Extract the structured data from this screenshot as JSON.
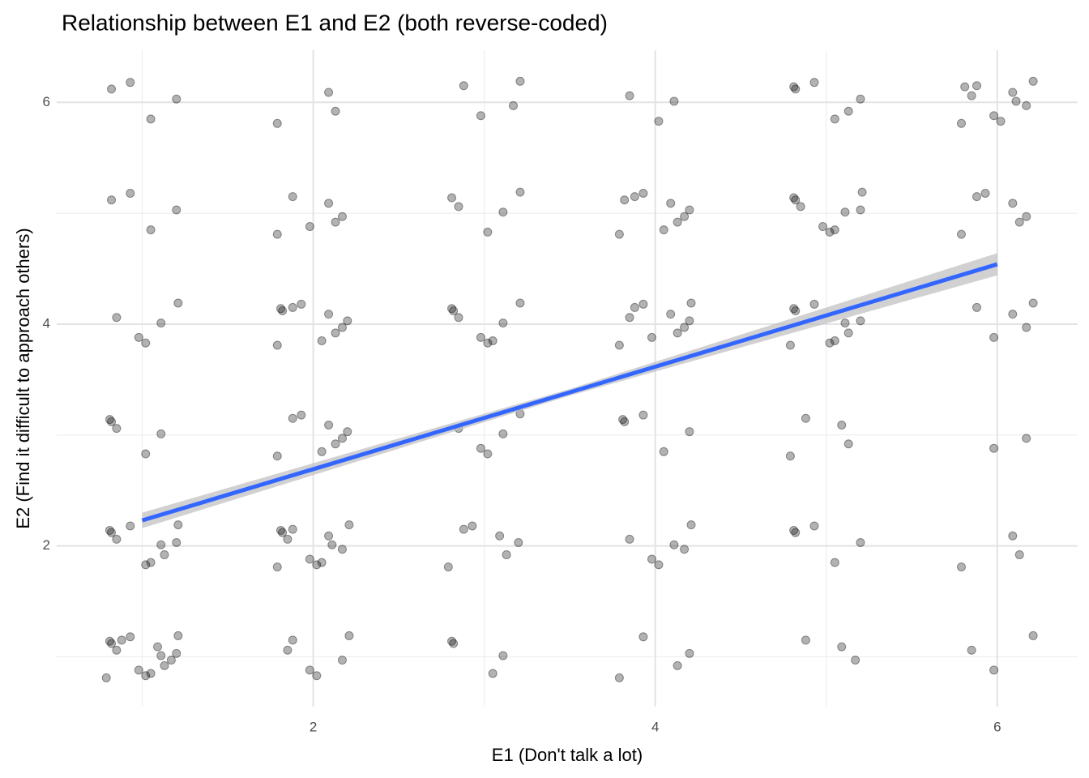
{
  "chart_data": {
    "type": "scatter",
    "title": "Relationship between E1 and E2 (both reverse-coded)",
    "x_label": "E1 (Don't talk a lot)",
    "y_label": "E2 (Find it difficult to approach others)",
    "xlim": [
      0.5,
      6.47
    ],
    "ylim": [
      0.55,
      6.47
    ],
    "xticks": [
      2,
      4,
      6
    ],
    "yticks": [
      2,
      4,
      6
    ],
    "x_minor_grid": [
      1,
      3,
      5
    ],
    "y_minor_grid": [
      1,
      3,
      5
    ],
    "grid": true,
    "point_color": "#000000",
    "point_opacity": 0.3,
    "points": [
      [
        0.82,
        6.12
      ],
      [
        1.05,
        5.85
      ],
      [
        1.2,
        6.03
      ],
      [
        0.93,
        6.18
      ],
      [
        2.13,
        5.92
      ],
      [
        1.79,
        5.81
      ],
      [
        2.09,
        6.09
      ],
      [
        2.88,
        6.15
      ],
      [
        3.17,
        5.97
      ],
      [
        2.98,
        5.88
      ],
      [
        3.21,
        6.19
      ],
      [
        3.85,
        6.06
      ],
      [
        4.02,
        5.83
      ],
      [
        4.11,
        6.01
      ],
      [
        4.81,
        6.14
      ],
      [
        4.82,
        6.12
      ],
      [
        5.05,
        5.85
      ],
      [
        5.2,
        6.03
      ],
      [
        4.93,
        6.18
      ],
      [
        5.13,
        5.92
      ],
      [
        5.79,
        5.81
      ],
      [
        6.09,
        6.09
      ],
      [
        5.88,
        6.15
      ],
      [
        6.17,
        5.97
      ],
      [
        5.98,
        5.88
      ],
      [
        6.21,
        6.19
      ],
      [
        5.85,
        6.06
      ],
      [
        6.02,
        5.83
      ],
      [
        6.11,
        6.01
      ],
      [
        5.81,
        6.14
      ],
      [
        0.82,
        5.12
      ],
      [
        1.05,
        4.85
      ],
      [
        1.2,
        5.03
      ],
      [
        0.93,
        5.18
      ],
      [
        2.13,
        4.92
      ],
      [
        1.79,
        4.81
      ],
      [
        2.09,
        5.09
      ],
      [
        1.88,
        5.15
      ],
      [
        2.17,
        4.97
      ],
      [
        1.98,
        4.88
      ],
      [
        3.21,
        5.19
      ],
      [
        2.85,
        5.06
      ],
      [
        3.02,
        4.83
      ],
      [
        3.11,
        5.01
      ],
      [
        2.81,
        5.14
      ],
      [
        3.82,
        5.12
      ],
      [
        4.05,
        4.85
      ],
      [
        4.2,
        5.03
      ],
      [
        3.93,
        5.18
      ],
      [
        4.13,
        4.92
      ],
      [
        3.79,
        4.81
      ],
      [
        4.09,
        5.09
      ],
      [
        3.88,
        5.15
      ],
      [
        4.17,
        4.97
      ],
      [
        4.98,
        4.88
      ],
      [
        5.21,
        5.19
      ],
      [
        4.85,
        5.06
      ],
      [
        5.02,
        4.83
      ],
      [
        5.11,
        5.01
      ],
      [
        4.81,
        5.14
      ],
      [
        4.82,
        5.12
      ],
      [
        5.05,
        4.85
      ],
      [
        5.2,
        5.03
      ],
      [
        5.93,
        5.18
      ],
      [
        6.13,
        4.92
      ],
      [
        5.79,
        4.81
      ],
      [
        6.09,
        5.09
      ],
      [
        5.88,
        5.15
      ],
      [
        6.17,
        4.97
      ],
      [
        0.98,
        3.88
      ],
      [
        1.21,
        4.19
      ],
      [
        0.85,
        4.06
      ],
      [
        1.02,
        3.83
      ],
      [
        1.11,
        4.01
      ],
      [
        1.81,
        4.14
      ],
      [
        1.82,
        4.12
      ],
      [
        2.05,
        3.85
      ],
      [
        2.2,
        4.03
      ],
      [
        1.93,
        4.18
      ],
      [
        2.13,
        3.92
      ],
      [
        1.79,
        3.81
      ],
      [
        2.09,
        4.09
      ],
      [
        1.88,
        4.15
      ],
      [
        2.17,
        3.97
      ],
      [
        2.98,
        3.88
      ],
      [
        3.21,
        4.19
      ],
      [
        2.85,
        4.06
      ],
      [
        3.02,
        3.83
      ],
      [
        3.11,
        4.01
      ],
      [
        2.81,
        4.14
      ],
      [
        2.82,
        4.12
      ],
      [
        3.05,
        3.85
      ],
      [
        4.2,
        4.03
      ],
      [
        3.93,
        4.18
      ],
      [
        4.13,
        3.92
      ],
      [
        3.79,
        3.81
      ],
      [
        4.09,
        4.09
      ],
      [
        3.88,
        4.15
      ],
      [
        4.17,
        3.97
      ],
      [
        3.98,
        3.88
      ],
      [
        4.21,
        4.19
      ],
      [
        3.85,
        4.06
      ],
      [
        5.02,
        3.83
      ],
      [
        5.11,
        4.01
      ],
      [
        4.81,
        4.14
      ],
      [
        4.82,
        4.12
      ],
      [
        5.05,
        3.85
      ],
      [
        5.2,
        4.03
      ],
      [
        4.93,
        4.18
      ],
      [
        5.13,
        3.92
      ],
      [
        4.79,
        3.81
      ],
      [
        6.09,
        4.09
      ],
      [
        5.88,
        4.15
      ],
      [
        6.17,
        3.97
      ],
      [
        5.98,
        3.88
      ],
      [
        6.21,
        4.19
      ],
      [
        0.85,
        3.06
      ],
      [
        1.02,
        2.83
      ],
      [
        1.11,
        3.01
      ],
      [
        0.81,
        3.14
      ],
      [
        0.82,
        3.12
      ],
      [
        2.05,
        2.85
      ],
      [
        2.2,
        3.03
      ],
      [
        1.93,
        3.18
      ],
      [
        2.13,
        2.92
      ],
      [
        1.79,
        2.81
      ],
      [
        2.09,
        3.09
      ],
      [
        1.88,
        3.15
      ],
      [
        2.17,
        2.97
      ],
      [
        2.98,
        2.88
      ],
      [
        3.21,
        3.19
      ],
      [
        2.85,
        3.06
      ],
      [
        3.02,
        2.83
      ],
      [
        3.11,
        3.01
      ],
      [
        3.81,
        3.14
      ],
      [
        3.82,
        3.12
      ],
      [
        4.05,
        2.85
      ],
      [
        4.2,
        3.03
      ],
      [
        3.93,
        3.18
      ],
      [
        5.13,
        2.92
      ],
      [
        4.79,
        2.81
      ],
      [
        5.09,
        3.09
      ],
      [
        4.88,
        3.15
      ],
      [
        6.17,
        2.97
      ],
      [
        5.98,
        2.88
      ],
      [
        1.21,
        2.19
      ],
      [
        0.85,
        2.06
      ],
      [
        1.02,
        1.83
      ],
      [
        1.11,
        2.01
      ],
      [
        0.81,
        2.14
      ],
      [
        0.82,
        2.12
      ],
      [
        1.05,
        1.85
      ],
      [
        1.2,
        2.03
      ],
      [
        0.93,
        2.18
      ],
      [
        1.13,
        1.92
      ],
      [
        1.79,
        1.81
      ],
      [
        2.09,
        2.09
      ],
      [
        1.88,
        2.15
      ],
      [
        2.17,
        1.97
      ],
      [
        1.98,
        1.88
      ],
      [
        2.21,
        2.19
      ],
      [
        1.85,
        2.06
      ],
      [
        2.02,
        1.83
      ],
      [
        2.11,
        2.01
      ],
      [
        1.81,
        2.14
      ],
      [
        1.82,
        2.12
      ],
      [
        2.05,
        1.85
      ],
      [
        3.2,
        2.03
      ],
      [
        2.93,
        2.18
      ],
      [
        3.13,
        1.92
      ],
      [
        2.79,
        1.81
      ],
      [
        3.09,
        2.09
      ],
      [
        2.88,
        2.15
      ],
      [
        4.17,
        1.97
      ],
      [
        3.98,
        1.88
      ],
      [
        4.21,
        2.19
      ],
      [
        3.85,
        2.06
      ],
      [
        4.02,
        1.83
      ],
      [
        4.11,
        2.01
      ],
      [
        4.81,
        2.14
      ],
      [
        4.82,
        2.12
      ],
      [
        5.05,
        1.85
      ],
      [
        5.2,
        2.03
      ],
      [
        4.93,
        2.18
      ],
      [
        6.13,
        1.92
      ],
      [
        5.79,
        1.81
      ],
      [
        6.09,
        2.09
      ],
      [
        0.88,
        1.15
      ],
      [
        1.17,
        0.97
      ],
      [
        0.98,
        0.88
      ],
      [
        1.21,
        1.19
      ],
      [
        0.85,
        1.06
      ],
      [
        1.02,
        0.83
      ],
      [
        1.11,
        1.01
      ],
      [
        0.81,
        1.14
      ],
      [
        0.82,
        1.12
      ],
      [
        1.05,
        0.85
      ],
      [
        1.2,
        1.03
      ],
      [
        0.93,
        1.18
      ],
      [
        1.13,
        0.92
      ],
      [
        0.79,
        0.81
      ],
      [
        1.09,
        1.09
      ],
      [
        1.88,
        1.15
      ],
      [
        2.17,
        0.97
      ],
      [
        1.98,
        0.88
      ],
      [
        2.21,
        1.19
      ],
      [
        1.85,
        1.06
      ],
      [
        2.02,
        0.83
      ],
      [
        3.11,
        1.01
      ],
      [
        2.81,
        1.14
      ],
      [
        2.82,
        1.12
      ],
      [
        3.05,
        0.85
      ],
      [
        4.2,
        1.03
      ],
      [
        3.93,
        1.18
      ],
      [
        4.13,
        0.92
      ],
      [
        3.79,
        0.81
      ],
      [
        5.09,
        1.09
      ],
      [
        4.88,
        1.15
      ],
      [
        5.17,
        0.97
      ],
      [
        5.98,
        0.88
      ],
      [
        6.21,
        1.19
      ],
      [
        5.85,
        1.06
      ]
    ],
    "trend": {
      "color": "#3366ff",
      "band_color": "#bebebe",
      "x": [
        1,
        3.5,
        6
      ],
      "y": [
        2.23,
        3.385,
        4.54
      ],
      "ci_low": [
        2.16,
        3.355,
        4.44
      ],
      "ci_high": [
        2.3,
        3.415,
        4.64
      ]
    }
  }
}
